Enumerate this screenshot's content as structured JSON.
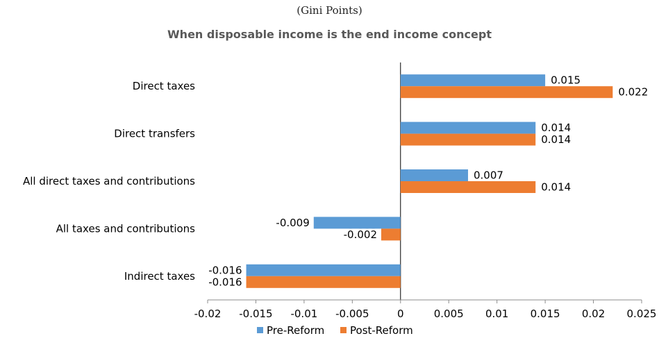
{
  "chart_data": {
    "type": "bar",
    "orientation": "horizontal",
    "units_note": "(Gini Points)",
    "title": "When disposable income is the end income concept",
    "categories": [
      "Direct taxes",
      "Direct transfers",
      "All direct taxes and contributions",
      "All taxes and contributions",
      "Indirect taxes"
    ],
    "series": [
      {
        "name": "Pre-Reform",
        "color": "#5B9BD5",
        "values": [
          0.015,
          0.014,
          0.007,
          -0.009,
          -0.016
        ],
        "labels": [
          "0.015",
          "0.014",
          "0.007",
          "-0.009",
          "-0.016"
        ]
      },
      {
        "name": "Post-Reform",
        "color": "#ED7D31",
        "values": [
          0.022,
          0.014,
          0.014,
          -0.002,
          -0.016
        ],
        "labels": [
          "0.022",
          "0.014",
          "0.014",
          "-0.002",
          "-0.016"
        ]
      }
    ],
    "xlim": [
      -0.02,
      0.025
    ],
    "xticks": [
      "-0.02",
      "-0.015",
      "-0.01",
      "-0.005",
      "0",
      "0.005",
      "0.01",
      "0.015",
      "0.02",
      "0.025"
    ],
    "grid": false,
    "legend_position": "bottom"
  }
}
